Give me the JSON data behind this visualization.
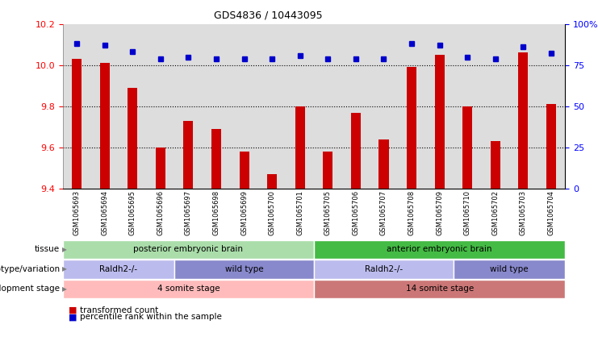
{
  "title": "GDS4836 / 10443095",
  "samples": [
    "GSM1065693",
    "GSM1065694",
    "GSM1065695",
    "GSM1065696",
    "GSM1065697",
    "GSM1065698",
    "GSM1065699",
    "GSM1065700",
    "GSM1065701",
    "GSM1065705",
    "GSM1065706",
    "GSM1065707",
    "GSM1065708",
    "GSM1065709",
    "GSM1065710",
    "GSM1065702",
    "GSM1065703",
    "GSM1065704"
  ],
  "bar_values": [
    10.03,
    10.01,
    9.89,
    9.6,
    9.73,
    9.69,
    9.58,
    9.47,
    9.8,
    9.58,
    9.77,
    9.64,
    9.99,
    10.05,
    9.8,
    9.63,
    10.06,
    9.81
  ],
  "percentile_values": [
    88,
    87,
    83,
    79,
    80,
    79,
    79,
    79,
    81,
    79,
    79,
    79,
    88,
    87,
    80,
    79,
    86,
    82
  ],
  "ylim_left": [
    9.4,
    10.2
  ],
  "bar_color": "#cc0000",
  "dot_color": "#0000cc",
  "bar_bottom": 9.4,
  "tissue_groups": [
    {
      "label": "posterior embryonic brain",
      "start": 0,
      "end": 9,
      "color": "#aaddaa"
    },
    {
      "label": "anterior embryonic brain",
      "start": 9,
      "end": 18,
      "color": "#44bb44"
    }
  ],
  "genotype_groups": [
    {
      "label": "Raldh2-/-",
      "start": 0,
      "end": 4,
      "color": "#bbbbee"
    },
    {
      "label": "wild type",
      "start": 4,
      "end": 9,
      "color": "#8888cc"
    },
    {
      "label": "Raldh2-/-",
      "start": 9,
      "end": 14,
      "color": "#bbbbee"
    },
    {
      "label": "wild type",
      "start": 14,
      "end": 18,
      "color": "#8888cc"
    }
  ],
  "dev_stage_groups": [
    {
      "label": "4 somite stage",
      "start": 0,
      "end": 9,
      "color": "#ffbbbb"
    },
    {
      "label": "14 somite stage",
      "start": 9,
      "end": 18,
      "color": "#cc7777"
    }
  ],
  "row_labels": [
    "tissue",
    "genotype/variation",
    "development stage"
  ],
  "grid_values": [
    9.6,
    9.8,
    10.0
  ],
  "bg_color": "#dddddd",
  "plot_bg": "#ffffff"
}
